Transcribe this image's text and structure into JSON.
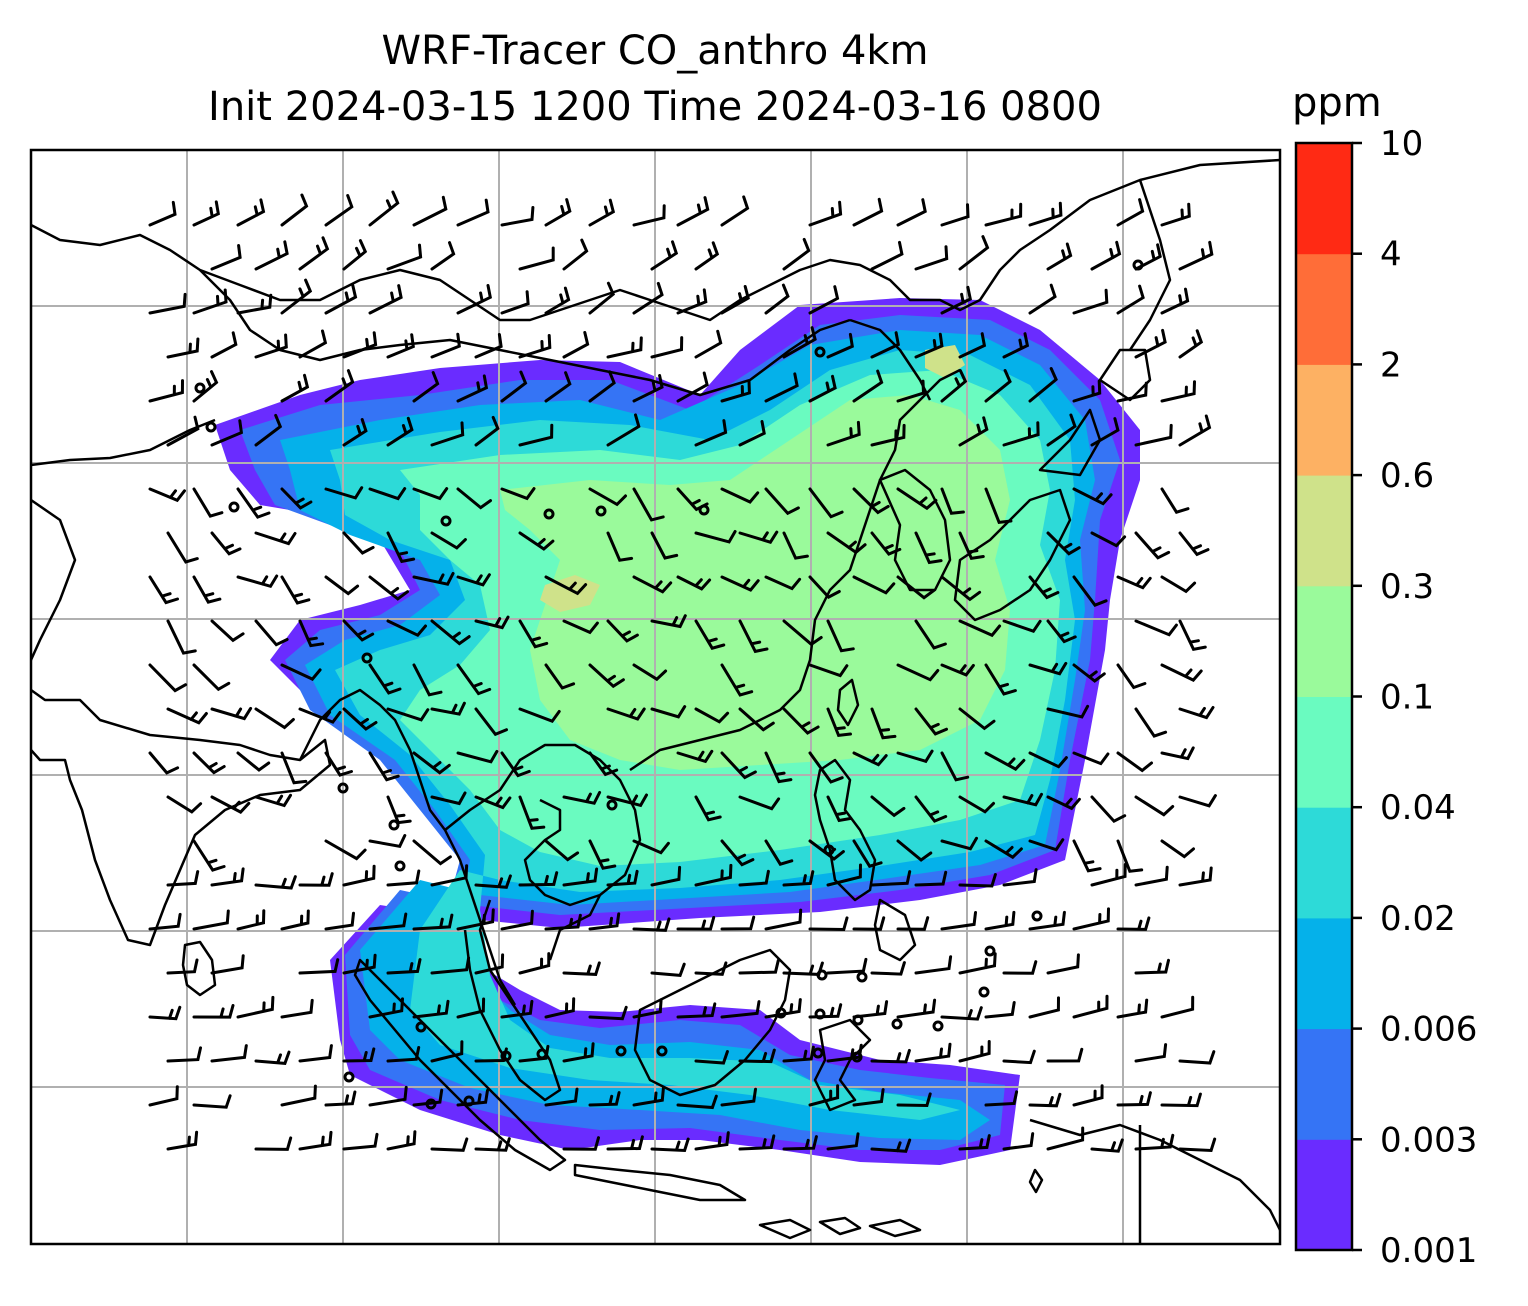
{
  "title": {
    "line1": "WRF-Tracer CO_anthro 4km",
    "line2": "Init 2024-03-15 1200 Time 2024-03-16 0800"
  },
  "colorbar": {
    "unit": "ppm",
    "levels": [
      "0.001",
      "0.003",
      "0.006",
      "0.02",
      "0.04",
      "0.1",
      "0.3",
      "0.6",
      "2",
      "4",
      "10"
    ],
    "colors": [
      "#6a2cff",
      "#3574f5",
      "#05b1ea",
      "#2ddad8",
      "#6afbc0",
      "#9afa9b",
      "#cfe28a",
      "#fdb163",
      "#ff6d38",
      "#ff2a14"
    ]
  },
  "map": {
    "background": "#ffffff",
    "gridline_color": "#b0b0b0",
    "coastline_color": "#000000",
    "barb_color": "#000000"
  }
}
